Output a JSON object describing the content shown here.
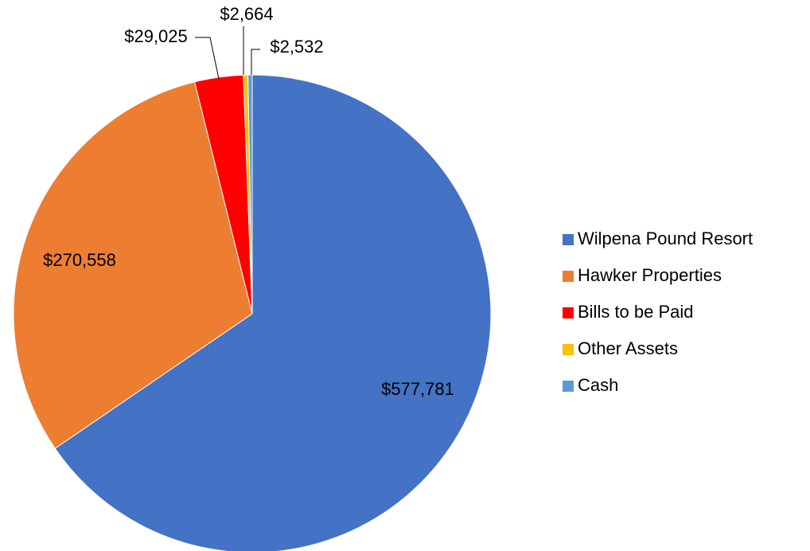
{
  "chart_data": {
    "type": "pie",
    "categories": [
      "Wilpena Pound Resort",
      "Hawker Properties",
      "Bills to be Paid",
      "Other Assets",
      "Cash"
    ],
    "values": [
      577781,
      270558,
      29025,
      2664,
      2532
    ],
    "value_labels": [
      "$577,781",
      "$270,558",
      "$29,025",
      "$2,664",
      "$2,532"
    ],
    "colors": [
      "#4472c4",
      "#ed7d31",
      "#ff0000",
      "#ffc000",
      "#5b9bd5"
    ],
    "legend": "right"
  }
}
